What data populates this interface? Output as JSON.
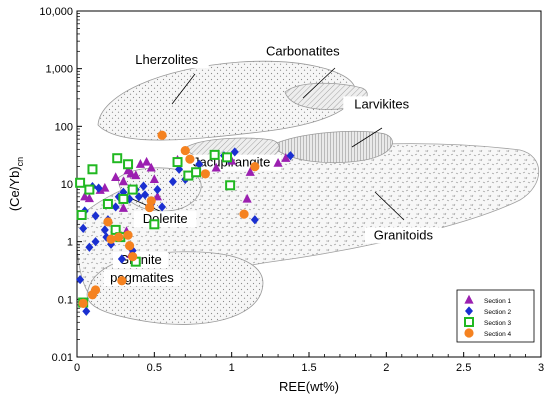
{
  "colors": {
    "section1": "#9b1fb0",
    "section2": "#1a2fd0",
    "section3": "#21b821",
    "section4": "#f58220",
    "field_fill": "#e8e8e8",
    "field_stroke": "#9a9a9a"
  },
  "chart_data": {
    "type": "scatter",
    "xlabel": "REE(wt%)",
    "ylabel": "(Ce/Yb)cn",
    "ylabel_main": "(Ce/Yb)",
    "ylabel_sub": "cn",
    "xlim": [
      0,
      3
    ],
    "ylim": [
      0.01,
      10000
    ],
    "yscale": "log",
    "x_ticks": [
      "0",
      "0.5",
      "1",
      "1.5",
      "2",
      "2.5",
      "3"
    ],
    "y_ticks": [
      "0.01",
      "0.1",
      "1",
      "10",
      "100",
      "1,000",
      "10,000"
    ],
    "legend_position": "bottom-right",
    "field_labels": [
      {
        "id": "lherzolites",
        "text": "Lherzolites",
        "x": 0.58,
        "y": 1200
      },
      {
        "id": "carbonatites",
        "text": "Carbonatites",
        "x": 1.46,
        "y": 1700
      },
      {
        "id": "larvikites",
        "text": "Larvikites",
        "x": 1.97,
        "y": 205
      },
      {
        "id": "jacupirangite",
        "text": "Jacupirangite",
        "x": 1.0,
        "y": 20
      },
      {
        "id": "dolerite",
        "text": "Dolerite",
        "x": 0.57,
        "y": 2.1
      },
      {
        "id": "granitoids",
        "text": "Granitoids",
        "x": 2.11,
        "y": 1.1
      },
      {
        "id": "granite-pegmatites-line1",
        "text": "Granite",
        "x": 0.41,
        "y": 0.41
      },
      {
        "id": "granite-pegmatites-line2",
        "text": "pegmatites",
        "x": 0.42,
        "y": 0.2
      }
    ],
    "series": [
      {
        "name": "Section 1",
        "marker": "triangle",
        "points": [
          [
            0.05,
            6
          ],
          [
            0.08,
            5.6
          ],
          [
            0.15,
            7.8
          ],
          [
            0.18,
            8.5
          ],
          [
            0.25,
            13
          ],
          [
            0.3,
            11
          ],
          [
            0.33,
            17
          ],
          [
            0.35,
            15
          ],
          [
            0.38,
            14
          ],
          [
            0.41,
            22
          ],
          [
            0.45,
            24
          ],
          [
            0.48,
            19
          ],
          [
            0.5,
            12
          ],
          [
            0.52,
            6
          ],
          [
            0.3,
            3.8
          ],
          [
            0.32,
            1.5
          ],
          [
            0.35,
            0.6
          ],
          [
            0.65,
            26
          ],
          [
            0.9,
            19
          ],
          [
            1.0,
            25
          ],
          [
            1.12,
            16
          ],
          [
            1.3,
            23
          ],
          [
            1.35,
            28
          ],
          [
            1.1,
            5.5
          ]
        ]
      },
      {
        "name": "Section 2",
        "marker": "diamond",
        "points": [
          [
            0.02,
            0.22
          ],
          [
            0.04,
            1.7
          ],
          [
            0.05,
            3.4
          ],
          [
            0.06,
            0.062
          ],
          [
            0.08,
            0.8
          ],
          [
            0.1,
            9
          ],
          [
            0.12,
            1
          ],
          [
            0.14,
            8.5
          ],
          [
            0.18,
            1.6
          ],
          [
            0.19,
            1.2
          ],
          [
            0.2,
            2.4
          ],
          [
            0.22,
            0.9
          ],
          [
            0.25,
            4
          ],
          [
            0.27,
            6
          ],
          [
            0.29,
            0.5
          ],
          [
            0.3,
            7.2
          ],
          [
            0.34,
            5.5
          ],
          [
            0.36,
            0.7
          ],
          [
            0.38,
            8
          ],
          [
            0.4,
            6
          ],
          [
            0.44,
            6.5
          ],
          [
            0.48,
            4.5
          ],
          [
            0.52,
            8
          ],
          [
            0.55,
            4
          ],
          [
            0.62,
            11
          ],
          [
            0.66,
            18
          ],
          [
            0.7,
            12
          ],
          [
            0.74,
            14
          ],
          [
            0.79,
            22
          ],
          [
            0.95,
            31
          ],
          [
            0.98,
            27
          ],
          [
            1.02,
            36
          ],
          [
            1.15,
            2.4
          ],
          [
            1.38,
            31
          ],
          [
            0.43,
            9.2
          ],
          [
            0.12,
            2.8
          ]
        ]
      },
      {
        "name": "Section 3",
        "marker": "square",
        "points": [
          [
            0.02,
            10.5
          ],
          [
            0.03,
            2.9
          ],
          [
            0.04,
            0.088
          ],
          [
            0.08,
            8
          ],
          [
            0.1,
            18
          ],
          [
            0.2,
            4.5
          ],
          [
            0.25,
            1.6
          ],
          [
            0.26,
            28
          ],
          [
            0.28,
            1.2
          ],
          [
            0.3,
            5.5
          ],
          [
            0.33,
            22
          ],
          [
            0.36,
            8
          ],
          [
            0.38,
            0.45
          ],
          [
            0.5,
            2
          ],
          [
            0.65,
            24
          ],
          [
            0.72,
            14
          ],
          [
            0.77,
            16
          ],
          [
            0.89,
            32
          ],
          [
            0.97,
            29
          ],
          [
            0.99,
            9.5
          ]
        ]
      },
      {
        "name": "Section 4",
        "marker": "circle",
        "points": [
          [
            0.04,
            0.085
          ],
          [
            0.1,
            0.12
          ],
          [
            0.12,
            0.145
          ],
          [
            0.2,
            2.2
          ],
          [
            0.27,
            1.2
          ],
          [
            0.29,
            0.21
          ],
          [
            0.33,
            1.3
          ],
          [
            0.34,
            0.85
          ],
          [
            0.36,
            0.55
          ],
          [
            0.48,
            5.1
          ],
          [
            0.55,
            70
          ],
          [
            0.7,
            38
          ],
          [
            0.73,
            27
          ],
          [
            0.83,
            15
          ],
          [
            1.08,
            3
          ],
          [
            1.15,
            20
          ],
          [
            0.47,
            3.9
          ],
          [
            0.22,
            1.1
          ]
        ]
      }
    ]
  }
}
